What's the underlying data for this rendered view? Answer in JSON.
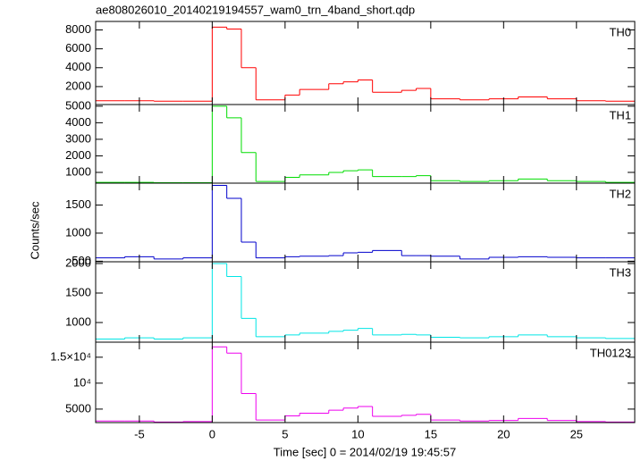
{
  "title": "ae808026010_20140219194557_wam0_trn_4band_short.qdp",
  "ylabel": "Counts/sec",
  "x_axis": {
    "label": "Time [sec] 0 = 2014/02/19 19:45:57",
    "bins": [
      -8,
      -6,
      -4,
      -2,
      0,
      1,
      2,
      3,
      5,
      6,
      8,
      9,
      10,
      11,
      13,
      14,
      15,
      17,
      19,
      21,
      23,
      25,
      27,
      29
    ],
    "xlim": [
      -8,
      29
    ],
    "xticks": [
      -5,
      0,
      5,
      10,
      15,
      20,
      25
    ]
  },
  "chart_data": [
    {
      "type": "histogram",
      "name": "TH0",
      "color": "#ff0000",
      "ylim": [
        100,
        8900
      ],
      "yticks": [
        2000,
        4000,
        6000,
        8000
      ],
      "values": [
        500,
        500,
        450,
        450,
        8300,
        8100,
        4000,
        600,
        1100,
        1700,
        2300,
        2500,
        2700,
        1400,
        1600,
        1800,
        700,
        600,
        700,
        900,
        700,
        500,
        450
      ]
    },
    {
      "type": "histogram",
      "name": "TH1",
      "color": "#00dd00",
      "ylim": [
        350,
        5100
      ],
      "yticks": [
        1000,
        2000,
        3000,
        4000,
        5000
      ],
      "values": [
        400,
        400,
        380,
        380,
        5000,
        4300,
        2200,
        450,
        700,
        850,
        1000,
        1100,
        1150,
        750,
        750,
        800,
        500,
        450,
        500,
        600,
        500,
        450,
        400
      ]
    },
    {
      "type": "histogram",
      "name": "TH2",
      "color": "#0000cc",
      "ylim": [
        490,
        1890
      ],
      "yticks": [
        500,
        1000,
        1500
      ],
      "values": [
        560,
        580,
        540,
        560,
        1850,
        1620,
        840,
        560,
        580,
        590,
        600,
        650,
        660,
        690,
        600,
        600,
        590,
        540,
        570,
        580,
        570,
        560,
        560
      ]
    },
    {
      "type": "histogram",
      "name": "TH3",
      "color": "#00e5e5",
      "ylim": [
        667,
        2030
      ],
      "yticks": [
        1000,
        1500,
        2000
      ],
      "values": [
        720,
        740,
        720,
        740,
        2000,
        1780,
        1070,
        760,
        790,
        820,
        850,
        870,
        900,
        790,
        800,
        790,
        750,
        740,
        760,
        790,
        760,
        740,
        730
      ]
    },
    {
      "type": "histogram",
      "name": "TH0123",
      "color": "#ee00ee",
      "ylim": [
        2400,
        17900
      ],
      "yticks": [
        5000,
        {
          "value": 10000,
          "label": "10⁴"
        },
        {
          "value": 15000,
          "label": "1.5×10⁴"
        }
      ],
      "values": [
        2700,
        2700,
        2500,
        2600,
        17000,
        15800,
        8000,
        2900,
        3700,
        4200,
        4800,
        5200,
        5500,
        3600,
        3800,
        4000,
        2900,
        2700,
        2800,
        3200,
        2800,
        2600,
        2500
      ]
    }
  ]
}
